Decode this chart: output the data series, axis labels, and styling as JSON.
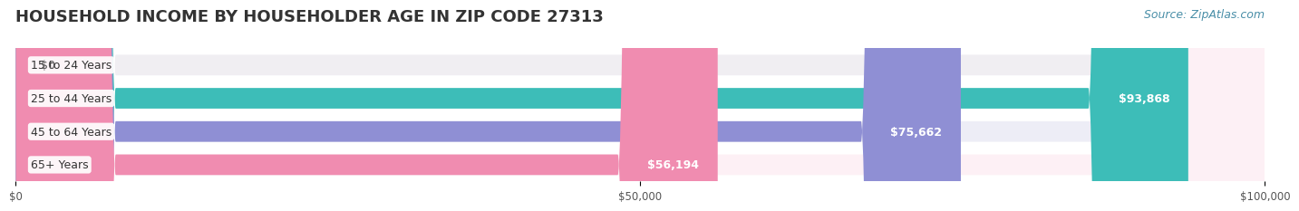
{
  "title": "HOUSEHOLD INCOME BY HOUSEHOLDER AGE IN ZIP CODE 27313",
  "source": "Source: ZipAtlas.com",
  "categories": [
    "15 to 24 Years",
    "25 to 44 Years",
    "45 to 64 Years",
    "65+ Years"
  ],
  "values": [
    0,
    93868,
    75662,
    56194
  ],
  "labels": [
    "$0",
    "$93,868",
    "$75,662",
    "$56,194"
  ],
  "bar_colors": [
    "#d8a8d0",
    "#3dbdb8",
    "#8f8fd4",
    "#f08cb0"
  ],
  "bar_bg_colors": [
    "#f0eef2",
    "#eaf7f6",
    "#ededf6",
    "#fdf0f5"
  ],
  "xmax": 100000,
  "xticks": [
    0,
    50000,
    100000
  ],
  "xtick_labels": [
    "$0",
    "$50,000",
    "$100,000"
  ],
  "background_color": "#ffffff",
  "title_fontsize": 13,
  "source_fontsize": 9,
  "label_fontsize": 9,
  "ylabel_fontsize": 9
}
